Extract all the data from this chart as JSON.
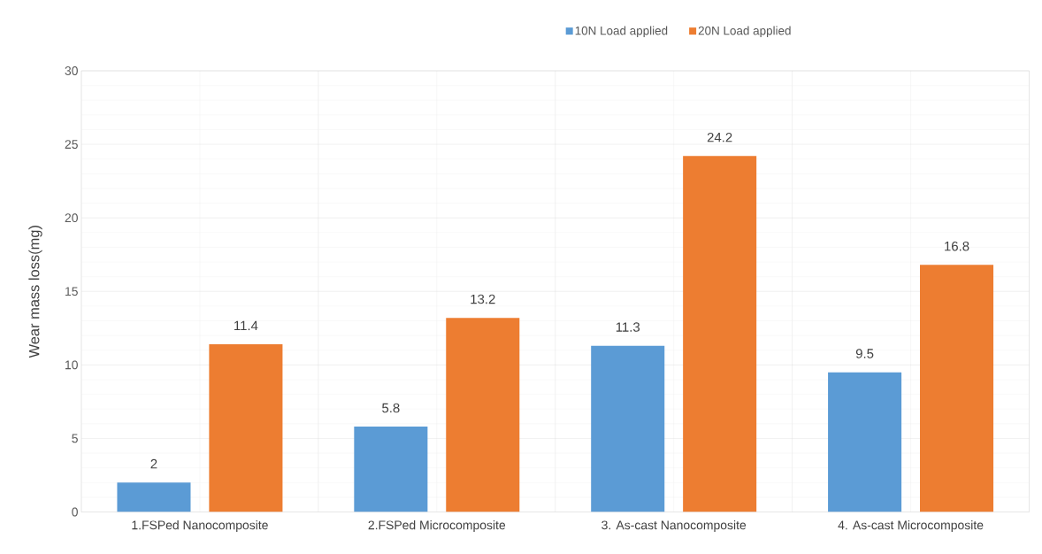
{
  "chart_data": {
    "type": "bar",
    "ylabel": "Wear mass loss(mg)",
    "categories": [
      "1.FSPed Nanocomposite",
      "2.FSPed Microcomposite",
      "3. As-cast Nanocomposite",
      "4. As-cast Microcomposite"
    ],
    "series": [
      {
        "name": "10N Load applied",
        "color": "#5b9bd5",
        "values": [
          2,
          5.8,
          11.3,
          9.5
        ]
      },
      {
        "name": "20N Load applied",
        "color": "#ed7d31",
        "values": [
          11.4,
          13.2,
          24.2,
          16.8
        ]
      }
    ],
    "ylim": [
      0,
      30
    ],
    "yticks": [
      0,
      5,
      10,
      15,
      20,
      25,
      30
    ],
    "grid": true,
    "legend": "top",
    "data_labels": true
  }
}
